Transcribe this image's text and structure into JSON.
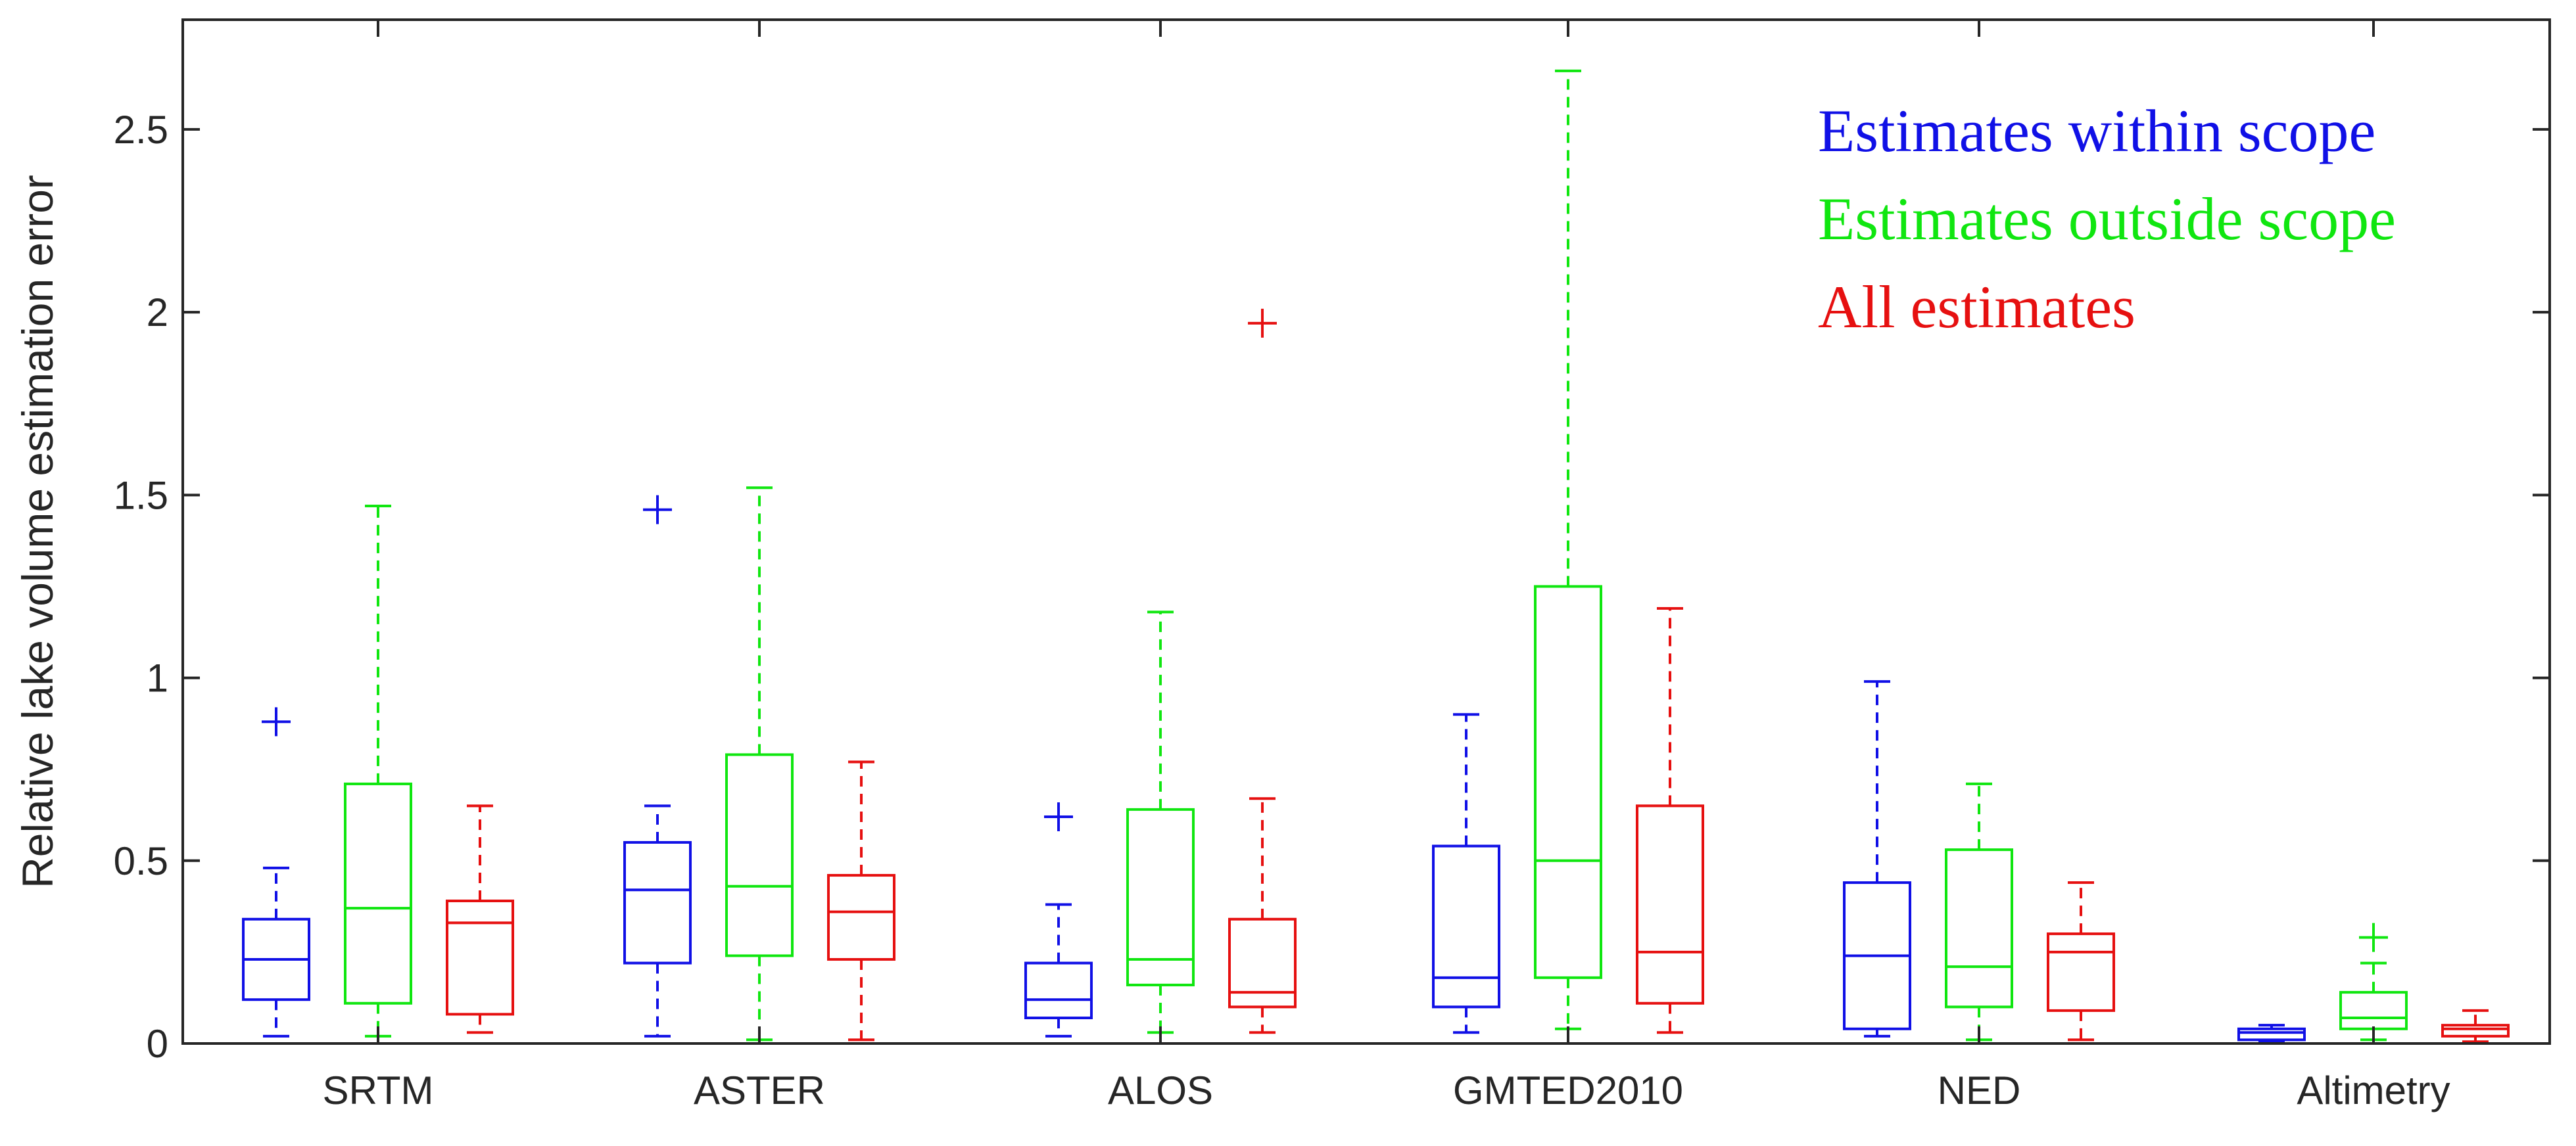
{
  "chart_data": {
    "type": "boxplot",
    "ylabel": "Relative lake volume estimation error",
    "ylim": [
      0,
      2.8
    ],
    "yticks": [
      0,
      0.5,
      1,
      1.5,
      2,
      2.5
    ],
    "ytick_labels": [
      "0",
      "0.5",
      "1",
      "1.5",
      "2",
      "2.5"
    ],
    "categories": [
      "SRTM",
      "ASTER",
      "ALOS",
      "GMTED2010",
      "NED",
      "Altimetry"
    ],
    "series": [
      {
        "name": "Estimates within scope",
        "color": "#1010e6",
        "boxes": [
          {
            "lower_whisker": 0.02,
            "q1": 0.12,
            "median": 0.23,
            "q3": 0.34,
            "upper_whisker": 0.48,
            "outliers": [
              0.88
            ]
          },
          {
            "lower_whisker": 0.02,
            "q1": 0.22,
            "median": 0.42,
            "q3": 0.55,
            "upper_whisker": 0.65,
            "outliers": [
              1.46
            ]
          },
          {
            "lower_whisker": 0.02,
            "q1": 0.07,
            "median": 0.12,
            "q3": 0.22,
            "upper_whisker": 0.38,
            "outliers": [
              0.62
            ]
          },
          {
            "lower_whisker": 0.03,
            "q1": 0.1,
            "median": 0.18,
            "q3": 0.54,
            "upper_whisker": 0.9,
            "outliers": []
          },
          {
            "lower_whisker": 0.02,
            "q1": 0.04,
            "median": 0.24,
            "q3": 0.44,
            "upper_whisker": 0.99,
            "outliers": []
          },
          {
            "lower_whisker": 0.005,
            "q1": 0.01,
            "median": 0.03,
            "q3": 0.04,
            "upper_whisker": 0.05,
            "outliers": []
          }
        ]
      },
      {
        "name": "Estimates outside scope",
        "color": "#10e610",
        "boxes": [
          {
            "lower_whisker": 0.02,
            "q1": 0.11,
            "median": 0.37,
            "q3": 0.71,
            "upper_whisker": 1.47,
            "outliers": []
          },
          {
            "lower_whisker": 0.01,
            "q1": 0.24,
            "median": 0.43,
            "q3": 0.79,
            "upper_whisker": 1.52,
            "outliers": []
          },
          {
            "lower_whisker": 0.03,
            "q1": 0.16,
            "median": 0.23,
            "q3": 0.64,
            "upper_whisker": 1.18,
            "outliers": []
          },
          {
            "lower_whisker": 0.04,
            "q1": 0.18,
            "median": 0.5,
            "q3": 1.25,
            "upper_whisker": 2.66,
            "outliers": []
          },
          {
            "lower_whisker": 0.01,
            "q1": 0.1,
            "median": 0.21,
            "q3": 0.53,
            "upper_whisker": 0.71,
            "outliers": []
          },
          {
            "lower_whisker": 0.01,
            "q1": 0.04,
            "median": 0.07,
            "q3": 0.14,
            "upper_whisker": 0.22,
            "outliers": [
              0.29
            ]
          }
        ]
      },
      {
        "name": "All estimates",
        "color": "#e61010",
        "boxes": [
          {
            "lower_whisker": 0.03,
            "q1": 0.08,
            "median": 0.33,
            "q3": 0.39,
            "upper_whisker": 0.65,
            "outliers": []
          },
          {
            "lower_whisker": 0.01,
            "q1": 0.23,
            "median": 0.36,
            "q3": 0.46,
            "upper_whisker": 0.77,
            "outliers": []
          },
          {
            "lower_whisker": 0.03,
            "q1": 0.1,
            "median": 0.14,
            "q3": 0.34,
            "upper_whisker": 0.67,
            "outliers": [
              1.97
            ]
          },
          {
            "lower_whisker": 0.03,
            "q1": 0.11,
            "median": 0.25,
            "q3": 0.65,
            "upper_whisker": 1.19,
            "outliers": []
          },
          {
            "lower_whisker": 0.01,
            "q1": 0.09,
            "median": 0.25,
            "q3": 0.3,
            "upper_whisker": 0.44,
            "outliers": []
          },
          {
            "lower_whisker": 0.005,
            "q1": 0.02,
            "median": 0.04,
            "q3": 0.05,
            "upper_whisker": 0.09,
            "outliers": []
          }
        ]
      }
    ],
    "legend": {
      "placement": "top-right",
      "entries": [
        "Estimates within scope",
        "Estimates outside scope",
        "All estimates"
      ]
    }
  }
}
